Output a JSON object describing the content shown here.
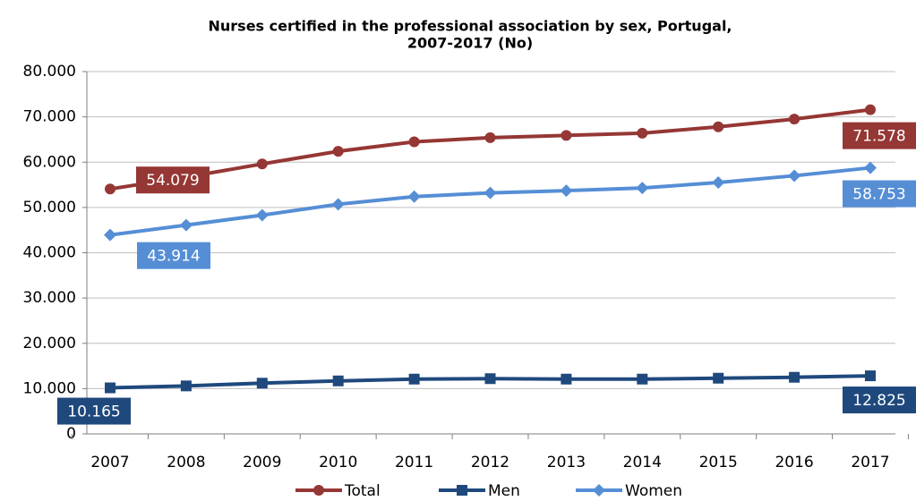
{
  "chart_data": {
    "type": "line",
    "title": "Nurses certified in the professional association by sex, Portugal,",
    "subtitle": "2007-2017 (No)",
    "categories": [
      "2007",
      "2008",
      "2009",
      "2010",
      "2011",
      "2012",
      "2013",
      "2014",
      "2015",
      "2016",
      "2017"
    ],
    "series": [
      {
        "name": "Total",
        "color": "#953735",
        "marker": "circle",
        "values": [
          54079,
          56700,
          59600,
          62400,
          64500,
          65400,
          65900,
          66400,
          67800,
          69500,
          71578
        ],
        "value_labels": [
          "54.079",
          null,
          null,
          null,
          null,
          null,
          null,
          null,
          null,
          null,
          "71.578"
        ]
      },
      {
        "name": "Men",
        "color": "#1f497d",
        "marker": "square",
        "values": [
          10165,
          10600,
          11200,
          11700,
          12100,
          12200,
          12100,
          12100,
          12300,
          12500,
          12825
        ],
        "value_labels": [
          "10.165",
          null,
          null,
          null,
          null,
          null,
          null,
          null,
          null,
          null,
          "12.825"
        ]
      },
      {
        "name": "Women",
        "color": "#558ed5",
        "marker": "diamond",
        "values": [
          43914,
          46100,
          48300,
          50700,
          52400,
          53200,
          53700,
          54300,
          55500,
          57000,
          58753
        ],
        "value_labels": [
          "43.914",
          null,
          null,
          null,
          null,
          null,
          null,
          null,
          null,
          null,
          "58.753"
        ]
      }
    ],
    "ylim": [
      0,
      80000
    ],
    "yticks": [
      0,
      {
        "value": 10000,
        "label": "10.000"
      },
      {
        "value": 20000,
        "label": "20.000"
      },
      {
        "value": 30000,
        "label": "30.000"
      },
      {
        "value": 40000,
        "label": "40.000"
      },
      {
        "value": 50000,
        "label": "50.000"
      },
      {
        "value": 60000,
        "label": "60.000"
      },
      {
        "value": 70000,
        "label": "70.000"
      },
      {
        "value": 80000,
        "label": "80.000"
      }
    ],
    "grid": true,
    "legend": "bottom"
  }
}
